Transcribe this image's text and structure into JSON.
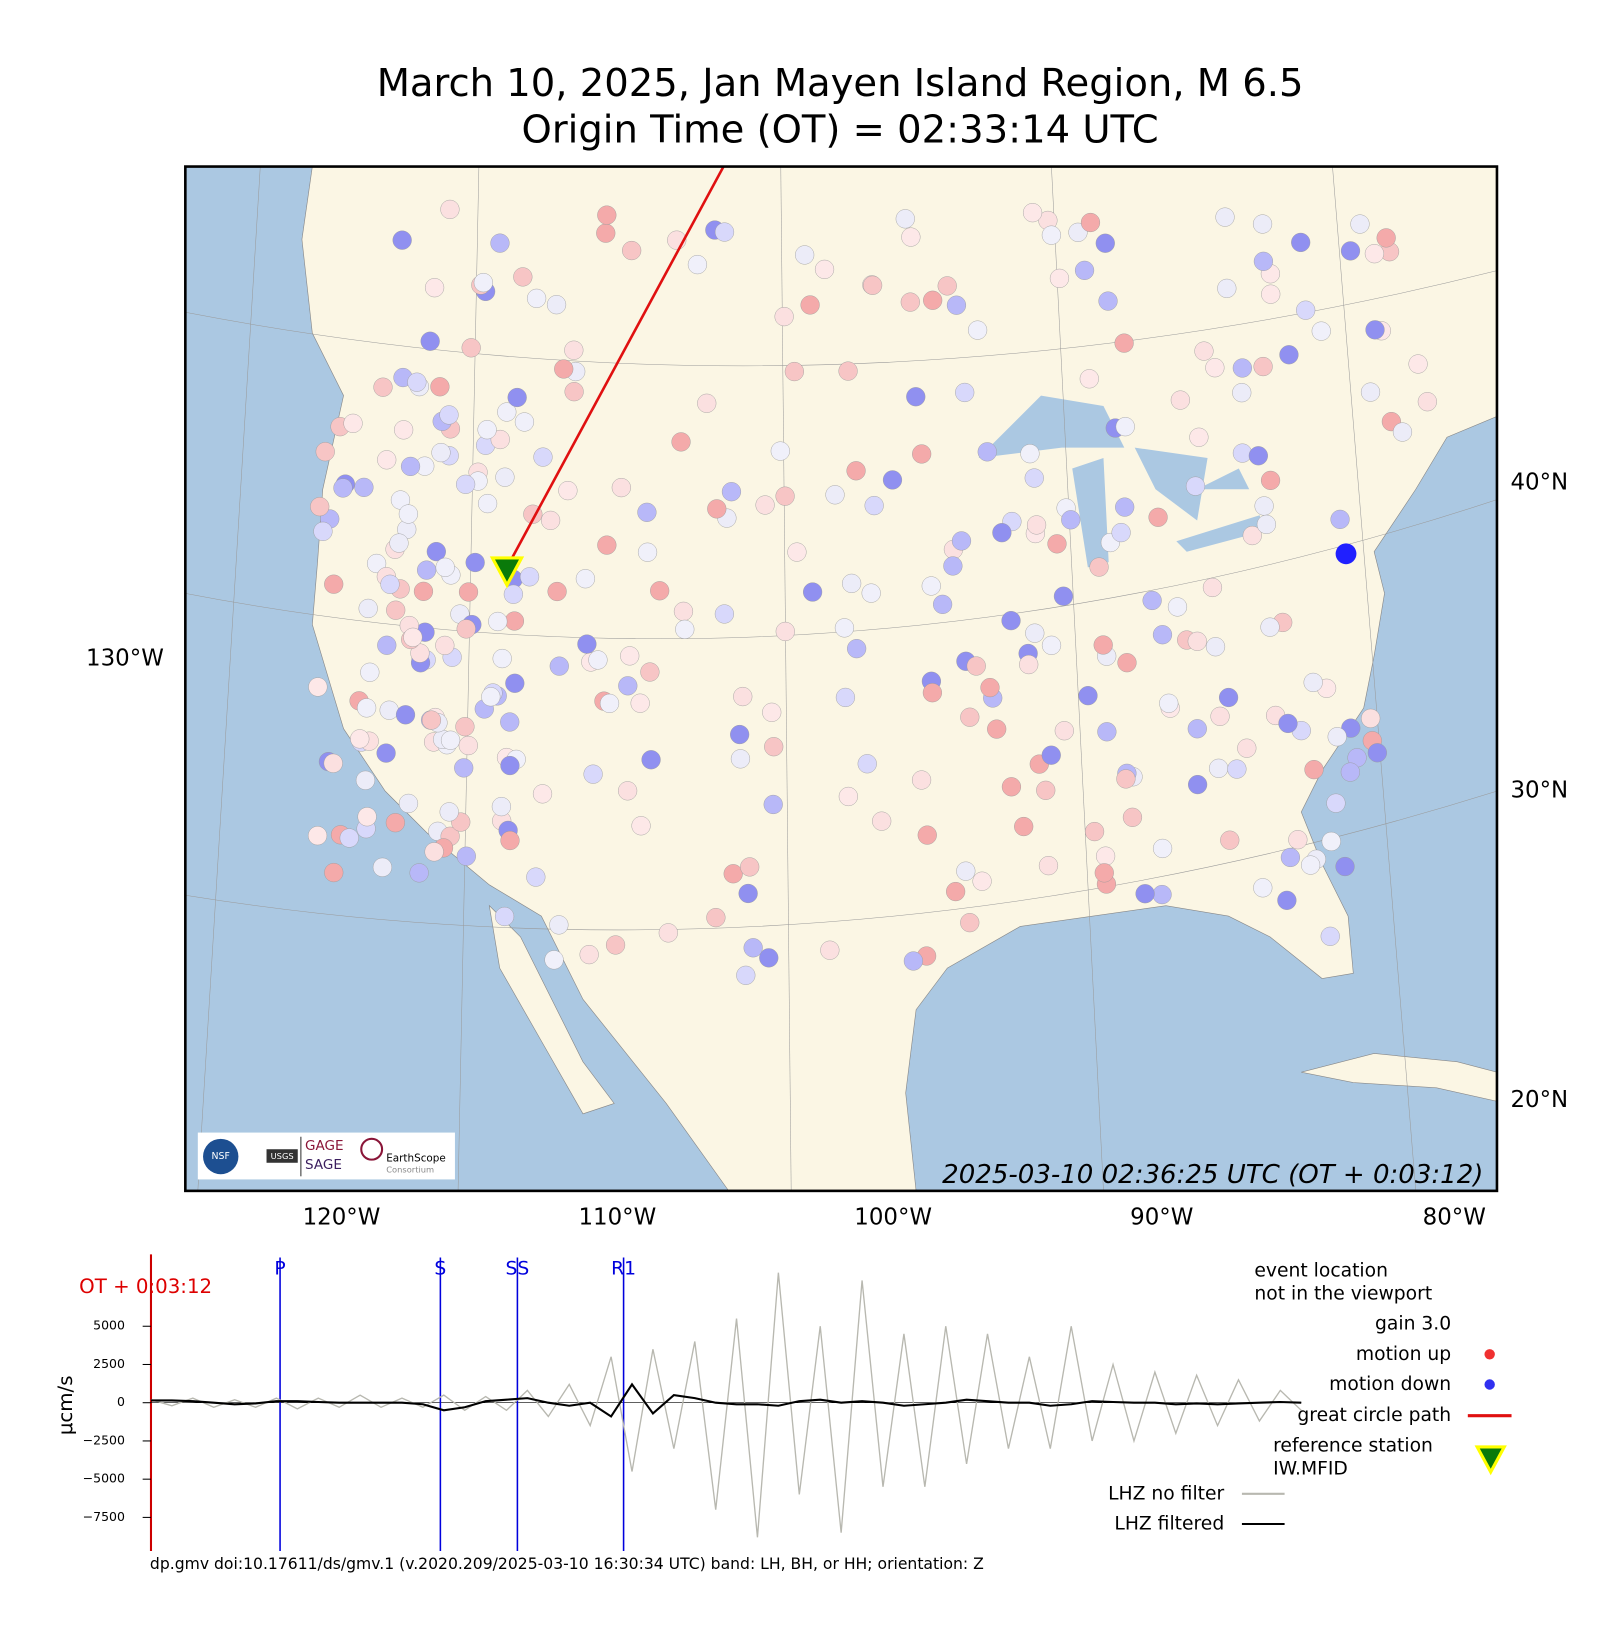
{
  "title": [
    "March 10, 2025, Jan Mayen Island Region, M 6.5",
    "Origin Time (OT) = 02:33:14 UTC"
  ],
  "map": {
    "lon_labels": [
      "120°W",
      "110°W",
      "100°W",
      "90°W",
      "80°W"
    ],
    "lat_labels": [
      "40°N",
      "30°N",
      "20°N"
    ],
    "left_label": "130°W",
    "timestamp": "2025-03-10 02:36:25 UTC (OT + 0:03:12)",
    "logos": [
      "GAGE",
      "SAGE",
      "EarthScope",
      "Consortium",
      "USGS",
      "NSF"
    ]
  },
  "seismogram": {
    "ylabel": "μcm/s",
    "time_label": "OT + 0:03:12",
    "ylim": [
      -9700,
      9700
    ],
    "yticks": [
      {
        "value": -7500,
        "label": "−7500"
      },
      {
        "value": -5000,
        "label": "−5000"
      },
      {
        "value": -2500,
        "label": "−2500"
      },
      0,
      2500,
      5000
    ],
    "phases": [
      "P",
      "S",
      "SS",
      "R1"
    ],
    "unfiltered": {
      "name": "LHZ no filter",
      "color": "#b8b8b0",
      "values": [
        200,
        -200,
        300,
        -300,
        200,
        -300,
        300,
        -400,
        300,
        -300,
        500,
        -300,
        300,
        -300,
        500,
        -500,
        400,
        -500,
        800,
        -900,
        1200,
        -1500,
        3000,
        -4500,
        3500,
        -3000,
        4000,
        -7000,
        5500,
        -8800,
        8500,
        -6000,
        5000,
        -8500,
        8000,
        -5500,
        4500,
        -5500,
        5000,
        -4000,
        4500,
        -3000,
        3000,
        -3000,
        5000,
        -2500,
        2500,
        -2500,
        2000,
        -2000,
        1800,
        -1500,
        1500,
        -1200,
        800,
        -500
      ]
    },
    "filtered": {
      "name": "LHZ filtered",
      "color": "#000000",
      "values": [
        150,
        150,
        100,
        0,
        -100,
        -50,
        100,
        100,
        50,
        0,
        0,
        0,
        0,
        -100,
        -500,
        -300,
        100,
        200,
        300,
        0,
        -200,
        0,
        -900,
        1200,
        -700,
        500,
        300,
        0,
        -100,
        -100,
        -200,
        100,
        200,
        0,
        100,
        0,
        -200,
        -100,
        0,
        200,
        100,
        0,
        0,
        -200,
        -100,
        100,
        50,
        0,
        0,
        -100,
        -50,
        -100,
        -50,
        0,
        50,
        0
      ]
    }
  },
  "legend": {
    "event_location": [
      "event location",
      "not in the viewport"
    ],
    "gain": "gain  3.0",
    "motion_up": "motion up",
    "motion_down": "motion down",
    "great_circle": "great circle path",
    "reference": [
      "reference station",
      "IW.MFID"
    ]
  },
  "footer": "dp.gmv doi:10.17611/ds/gmv.1 (v.2020.209/2025-03-10 16:30:34 UTC) band: LH, BH, or HH; orientation: Z"
}
